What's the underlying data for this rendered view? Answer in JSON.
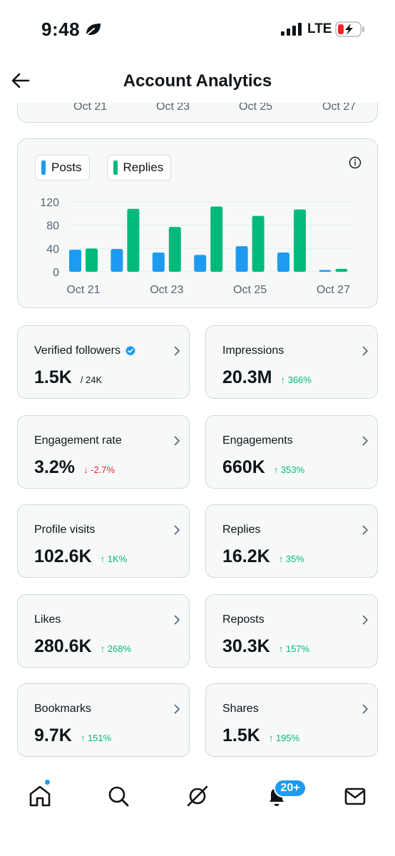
{
  "status_bar": {
    "time": "9:48",
    "network": "LTE",
    "icons": [
      "leaf-icon",
      "signal-icon",
      "battery-charging-icon"
    ]
  },
  "header": {
    "title": "Account Analytics",
    "back_icon": "arrow-left-icon"
  },
  "previous_chart": {
    "ticks": [
      "Oct 21",
      "Oct 23",
      "Oct 25",
      "Oct 27"
    ]
  },
  "chart_data": {
    "type": "bar",
    "legend": [
      "Posts",
      "Replies"
    ],
    "categories": [
      "Oct 21",
      "Oct 22",
      "Oct 23",
      "Oct 24",
      "Oct 25",
      "Oct 26",
      "Oct 27"
    ],
    "x_tick_labels": [
      "Oct 21",
      "Oct 23",
      "Oct 25",
      "Oct 27"
    ],
    "y_ticks": [
      "0",
      "40",
      "80",
      "120"
    ],
    "ylim": [
      0,
      120
    ],
    "series": [
      {
        "name": "Posts",
        "color": "#1d9bf0",
        "values": [
          38,
          39,
          33,
          29,
          44,
          33,
          3
        ]
      },
      {
        "name": "Replies",
        "color": "#00ba7c",
        "values": [
          40,
          108,
          77,
          112,
          96,
          107,
          5
        ]
      }
    ],
    "grid": true
  },
  "metrics": [
    {
      "label": "Verified followers",
      "value": "1.5K",
      "sub": "/ 24K",
      "change": "",
      "direction": "",
      "verified": true
    },
    {
      "label": "Impressions",
      "value": "20.3M",
      "sub": "",
      "change": "366%",
      "direction": "up",
      "verified": false
    },
    {
      "label": "Engagement rate",
      "value": "3.2%",
      "sub": "",
      "change": "-2.7%",
      "direction": "down",
      "verified": false
    },
    {
      "label": "Engagements",
      "value": "660K",
      "sub": "",
      "change": "353%",
      "direction": "up",
      "verified": false
    },
    {
      "label": "Profile visits",
      "value": "102.6K",
      "sub": "",
      "change": "1K%",
      "direction": "up",
      "verified": false
    },
    {
      "label": "Replies",
      "value": "16.2K",
      "sub": "",
      "change": "35%",
      "direction": "up",
      "verified": false
    },
    {
      "label": "Likes",
      "value": "280.6K",
      "sub": "",
      "change": "268%",
      "direction": "up",
      "verified": false
    },
    {
      "label": "Reposts",
      "value": "30.3K",
      "sub": "",
      "change": "157%",
      "direction": "up",
      "verified": false
    },
    {
      "label": "Bookmarks",
      "value": "9.7K",
      "sub": "",
      "change": "151%",
      "direction": "up",
      "verified": false
    },
    {
      "label": "Shares",
      "value": "1.5K",
      "sub": "",
      "change": "195%",
      "direction": "up",
      "verified": false
    }
  ],
  "bottom_nav": {
    "items": [
      "home-icon",
      "search-icon",
      "grok-icon",
      "notifications-icon",
      "messages-icon"
    ],
    "notifications_badge": "20+"
  },
  "colors": {
    "accent": "#1d9bf0",
    "positive": "#00ba7c",
    "negative": "#f4212e",
    "card_bg": "#f7f9f9",
    "card_border": "#cfd9de"
  }
}
